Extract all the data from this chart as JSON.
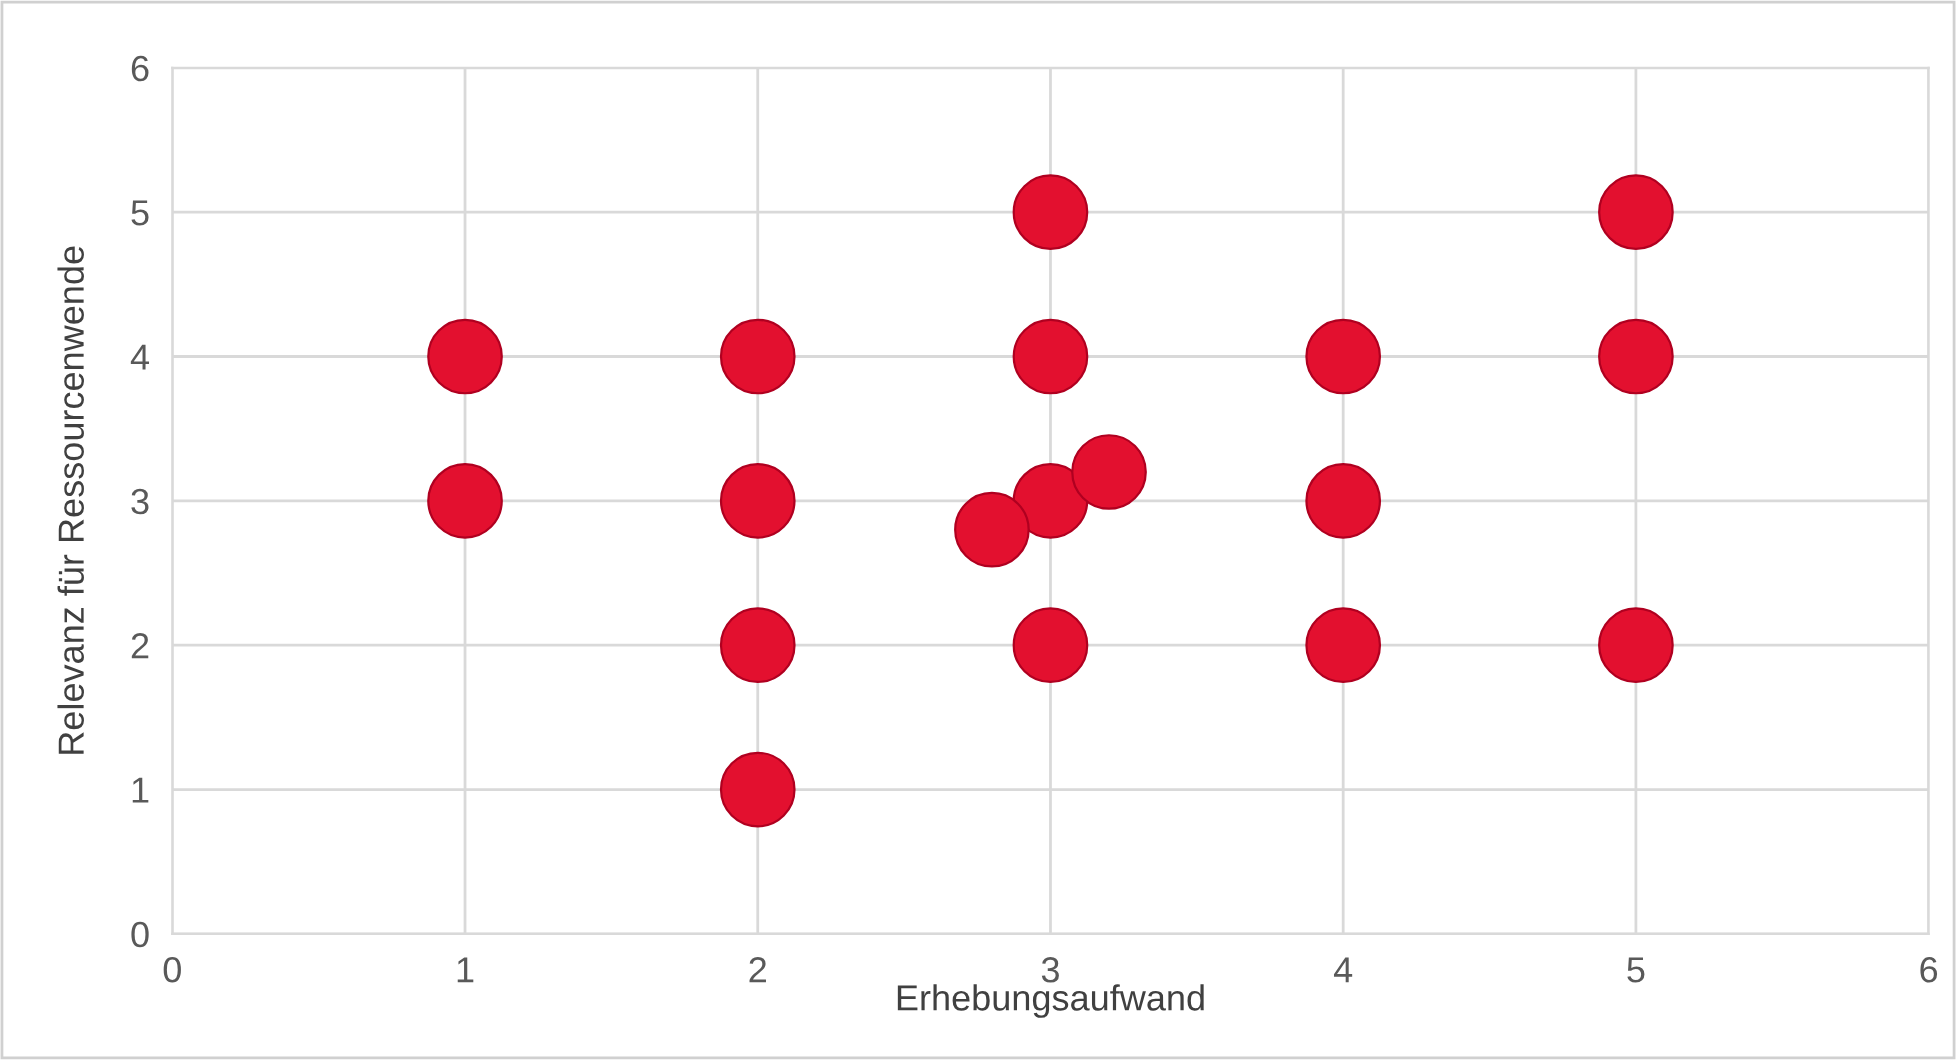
{
  "chart_data": {
    "type": "scatter",
    "xlabel": "Erhebungsaufwand",
    "ylabel": "Relevanz für Ressourcenwende",
    "x": [
      1,
      1,
      2,
      2,
      2,
      2,
      3,
      3,
      3,
      3,
      2.8,
      3.2,
      4,
      4,
      4,
      5,
      5,
      5
    ],
    "values": [
      4,
      3,
      4,
      3,
      2,
      1,
      5,
      4,
      3,
      2,
      2.8,
      3.2,
      4,
      3,
      2,
      5,
      4,
      2
    ],
    "color": "#e3102f",
    "marker": "circle",
    "xlim": [
      0,
      6
    ],
    "ylim": [
      0,
      6
    ],
    "xticks": [
      0,
      1,
      2,
      3,
      4,
      5,
      6
    ],
    "yticks": [
      0,
      1,
      2,
      3,
      4,
      5,
      6
    ],
    "grid": true,
    "legend": false
  }
}
